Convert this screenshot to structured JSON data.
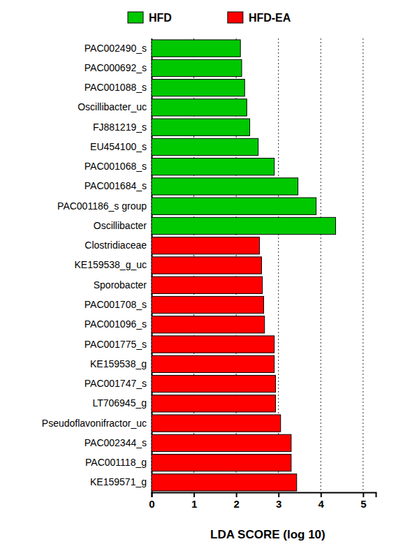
{
  "chart_data": {
    "type": "bar",
    "orientation": "horizontal",
    "categories": [
      "PAC002490_s",
      "PAC000692_s",
      "PAC001088_s",
      "Oscillibacter_uc",
      "FJ881219_s",
      "EU454100_s",
      "PAC001068_s",
      "PAC001684_s",
      "PAC001186_s group",
      "Oscillibacter",
      "Clostridiaceae",
      "KE159538_g_uc",
      "Sporobacter",
      "PAC001708_s",
      "PAC001096_s",
      "PAC001775_s",
      "KE159538_g",
      "PAC001747_s",
      "LT706945_g",
      "Pseudoflavonifractor_uc",
      "PAC002344_s",
      "PAC001118_g",
      "KE159571_g"
    ],
    "series": [
      {
        "name": "HFD",
        "color": "#00c800",
        "values": [
          2.1,
          2.13,
          2.2,
          2.25,
          2.32,
          2.52,
          2.9,
          3.46,
          3.89,
          4.35,
          null,
          null,
          null,
          null,
          null,
          null,
          null,
          null,
          null,
          null,
          null,
          null,
          null
        ]
      },
      {
        "name": "HFD-EA",
        "color": "#ff0000",
        "values": [
          null,
          null,
          null,
          null,
          null,
          null,
          null,
          null,
          null,
          null,
          2.55,
          2.6,
          2.62,
          2.65,
          2.67,
          2.9,
          2.9,
          2.93,
          2.93,
          3.05,
          3.3,
          3.3,
          3.43
        ]
      }
    ],
    "x_label": "LDA SCORE (log 10)",
    "xlim": [
      0,
      5.3
    ],
    "xticks": [
      0,
      1,
      2,
      3,
      4,
      5
    ],
    "grid": true,
    "legend": "top"
  }
}
